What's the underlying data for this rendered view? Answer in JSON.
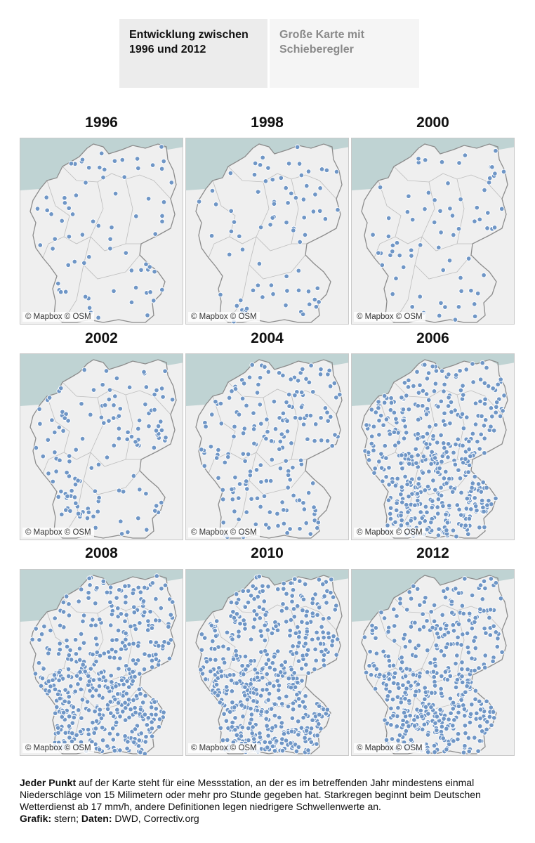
{
  "tabs": [
    {
      "label": "Entwicklung zwischen 1996 und 2012",
      "active": true
    },
    {
      "label": "Große Karte mit Schieberegler",
      "active": false
    }
  ],
  "map_attribution": "© Mapbox © OSM",
  "colors": {
    "dot": "#6f96c6",
    "dot_stroke": "#ffffff",
    "sea": "#bfd3d3",
    "land": "#efefef",
    "border": "#8c8c8c",
    "state_border": "#bdbdbd"
  },
  "maps": [
    {
      "year": "1996",
      "density": 75
    },
    {
      "year": "1998",
      "density": 80
    },
    {
      "year": "2000",
      "density": 75
    },
    {
      "year": "2002",
      "density": 135
    },
    {
      "year": "2004",
      "density": 190
    },
    {
      "year": "2006",
      "density": 480
    },
    {
      "year": "2008",
      "density": 500
    },
    {
      "year": "2010",
      "density": 560
    },
    {
      "year": "2012",
      "density": 470
    }
  ],
  "footer": {
    "lead_bold": "Jeder Punkt",
    "text": " auf der Karte steht für eine Messstation, an der es im betreffenden Jahr mindestens einmal Niederschläge von 15 Milimetern oder mehr pro Stunde gegeben hat. Starkregen beginnt beim Deutschen Wetterdienst ab 17 mm/h, andere Definitionen legen niedrigere Schwellenwerte an.",
    "grafik_label": "Grafik:",
    "grafik_value": " stern; ",
    "daten_label": "Daten:",
    "daten_value": " DWD, Correctiv.org"
  }
}
